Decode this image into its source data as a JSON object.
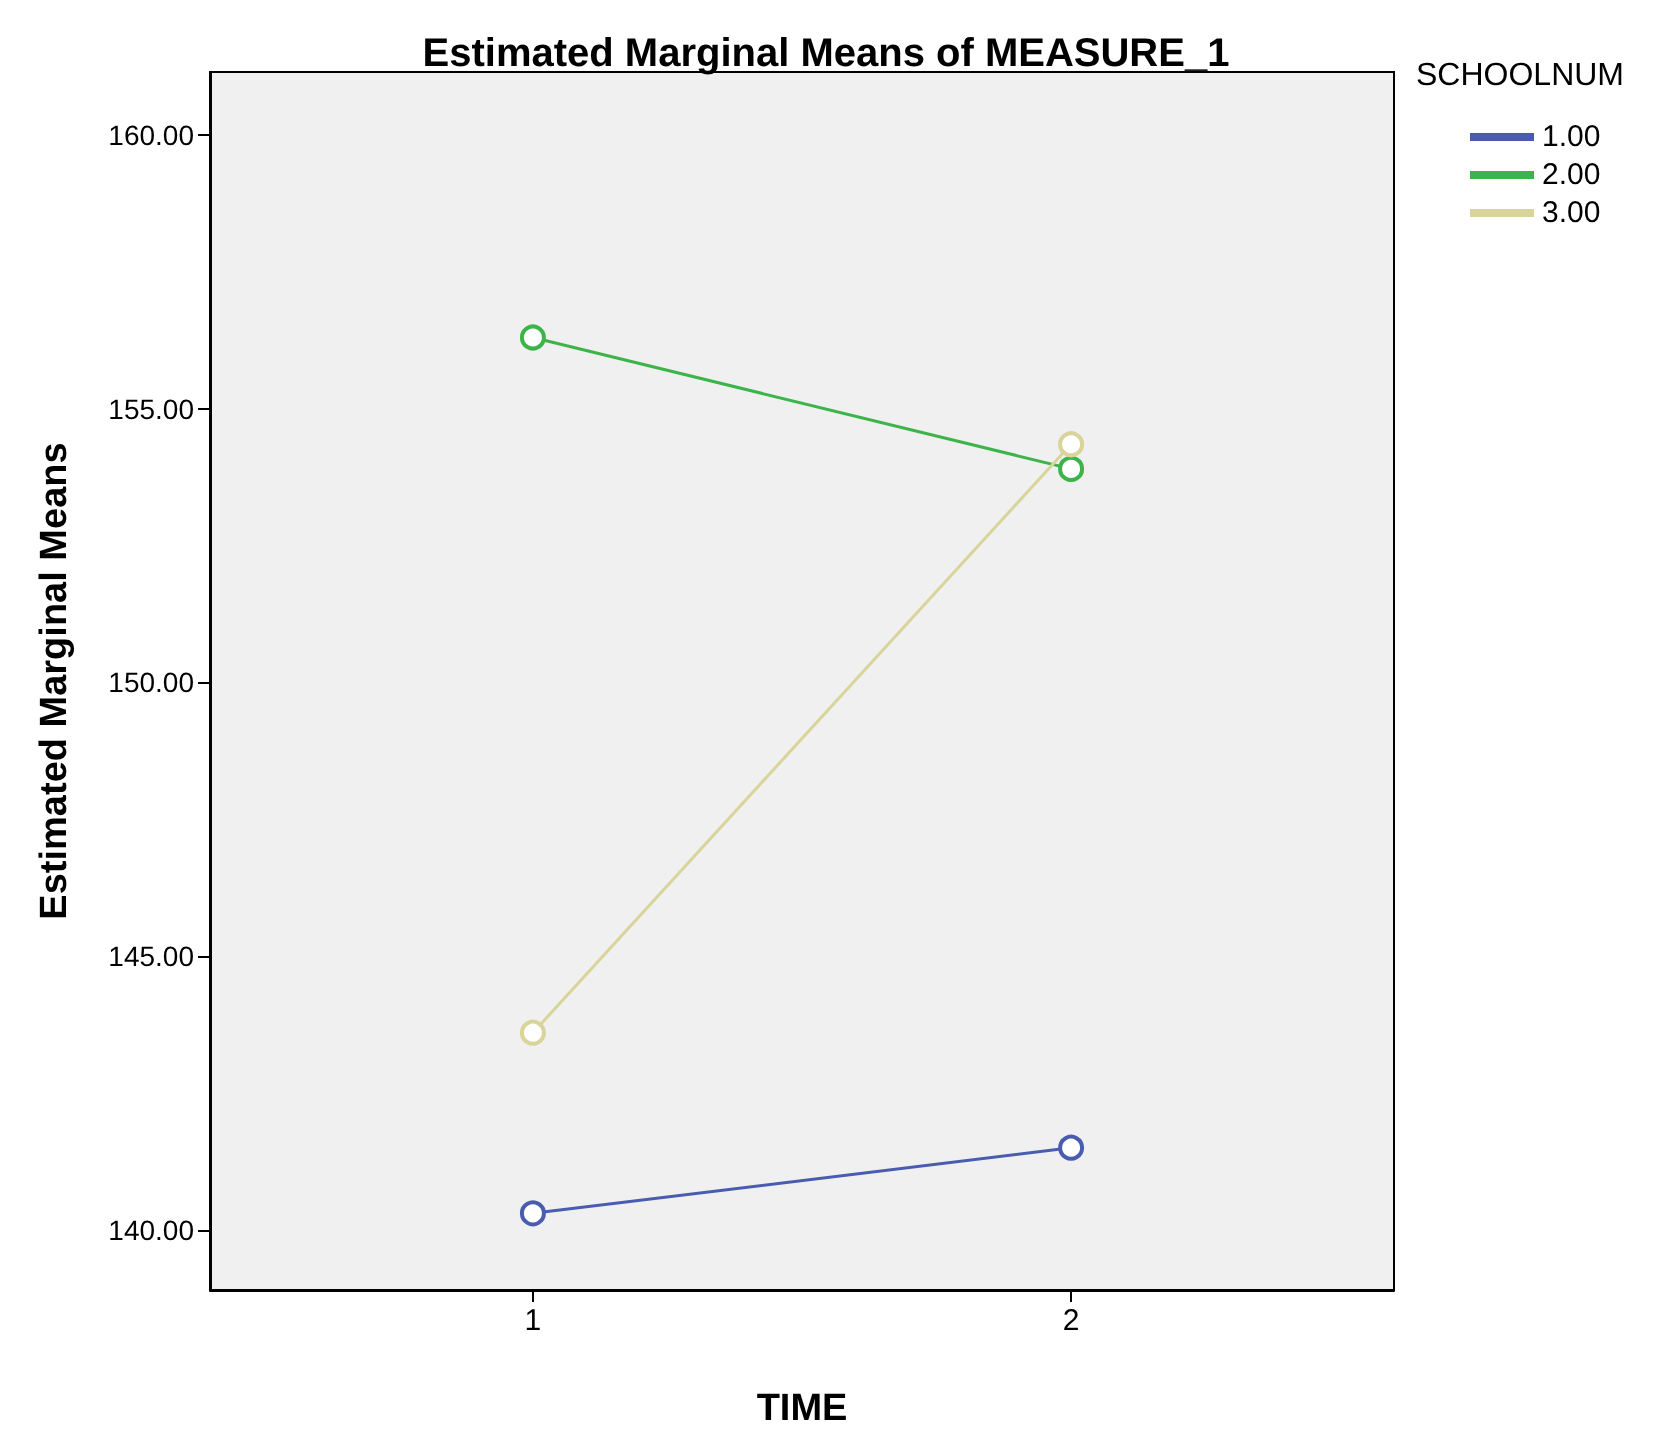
{
  "chart_data": {
    "type": "line",
    "title": "Estimated Marginal Means of MEASURE_1",
    "xlabel": "TIME",
    "ylabel": "Estimated Marginal Means",
    "legend_title": "SCHOOLNUM",
    "x": [
      1,
      2
    ],
    "xlim": [
      0.4,
      2.6
    ],
    "xticks": [
      1,
      2
    ],
    "ylim": [
      138.9,
      161.15
    ],
    "yticks": [
      {
        "value": 140,
        "label": "140.00"
      },
      {
        "value": 145,
        "label": "145.00"
      },
      {
        "value": 150,
        "label": "150.00"
      },
      {
        "value": 155,
        "label": "155.00"
      },
      {
        "value": 160,
        "label": "160.00"
      }
    ],
    "series": [
      {
        "name": "1.00",
        "color": "#4a5cb0",
        "values": [
          140.3,
          141.5
        ]
      },
      {
        "name": "2.00",
        "color": "#3cb44a",
        "values": [
          156.3,
          153.9
        ]
      },
      {
        "name": "3.00",
        "color": "#d8d49a",
        "values": [
          143.6,
          154.35
        ]
      }
    ],
    "legend": "top right",
    "grid": false,
    "marker": "circle"
  }
}
